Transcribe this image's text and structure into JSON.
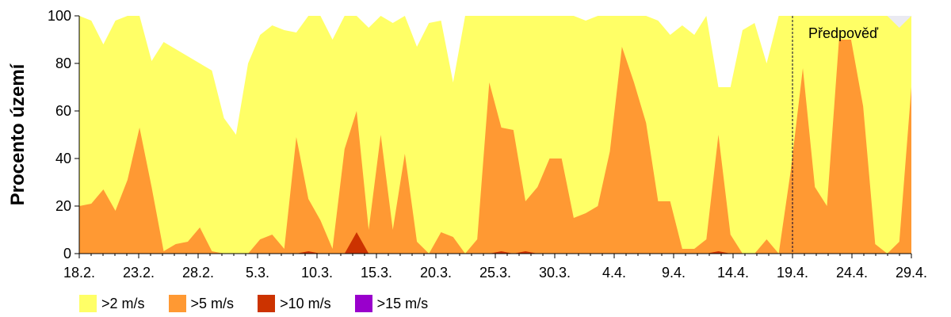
{
  "chart_data": {
    "type": "area",
    "title": "",
    "ylabel": "Procento území",
    "xlabel": "",
    "ylim": [
      0,
      100
    ],
    "yticks": [
      0,
      20,
      40,
      60,
      80,
      100
    ],
    "x_start": "18.2.",
    "x_end": "29.4.",
    "xtick_labels": [
      "18.2.",
      "23.2.",
      "28.2.",
      "5.3.",
      "10.3.",
      "15.3.",
      "20.3.",
      "25.3.",
      "30.3.",
      "4.4.",
      "9.4.",
      "14.4.",
      "19.4.",
      "24.4.",
      "29.4."
    ],
    "forecast_label": "Předpověď",
    "forecast_start": "19.4.",
    "series": [
      {
        "name": ">2 m/s",
        "color": "#ffff66",
        "values": [
          100,
          98,
          88,
          98,
          100,
          100,
          81,
          89,
          86,
          83,
          80,
          77,
          57,
          50,
          80,
          92,
          96,
          94,
          93,
          100,
          100,
          90,
          100,
          100,
          95,
          100,
          97,
          100,
          87,
          97,
          98,
          72,
          100,
          100,
          100,
          100,
          100,
          100,
          100,
          100,
          100,
          100,
          98,
          100,
          100,
          100,
          100,
          100,
          98,
          92,
          96,
          92,
          100,
          70,
          70,
          94,
          97,
          80,
          100,
          100,
          100,
          100,
          100,
          100,
          100,
          100,
          100,
          100,
          95,
          100
        ]
      },
      {
        "name": ">5 m/s",
        "color": "#ff9933",
        "values": [
          20,
          21,
          27,
          18,
          31,
          53,
          28,
          1,
          4,
          5,
          11,
          1,
          0,
          0,
          0,
          6,
          8,
          2,
          49,
          23,
          14,
          2,
          44,
          60,
          10,
          50,
          10,
          42,
          5,
          0,
          9,
          7,
          0,
          6,
          72,
          53,
          52,
          22,
          28,
          40,
          40,
          15,
          17,
          20,
          43,
          87,
          72,
          55,
          22,
          22,
          2,
          2,
          6,
          50,
          8,
          0,
          0,
          6,
          0,
          35,
          78,
          28,
          20,
          90,
          90,
          62,
          4,
          0,
          5,
          70
        ]
      },
      {
        "name": ">10 m/s",
        "color": "#cc3300",
        "values": [
          0,
          0,
          0,
          0,
          0,
          0,
          0,
          0,
          0,
          0,
          0,
          0,
          0,
          0,
          0,
          0,
          0,
          0,
          0,
          1,
          0,
          0,
          0,
          9,
          0,
          0,
          0,
          0,
          0,
          0,
          0,
          0,
          0,
          0,
          0,
          1,
          0,
          1,
          0,
          0,
          0,
          0,
          0,
          0,
          0,
          0,
          0,
          0,
          0,
          0,
          0,
          0,
          0,
          1,
          0,
          0,
          0,
          0,
          0,
          0,
          0,
          0,
          0,
          0,
          0,
          0,
          0,
          0,
          0,
          0
        ]
      },
      {
        "name": ">15 m/s",
        "color": "#9900cc",
        "values": [
          0,
          0,
          0,
          0,
          0,
          0,
          0,
          0,
          0,
          0,
          0,
          0,
          0,
          0,
          0,
          0,
          0,
          0,
          0,
          0,
          0,
          0,
          0,
          0,
          0,
          0,
          0,
          0,
          0,
          0,
          0,
          0,
          0,
          0,
          0,
          0,
          0,
          0,
          0,
          0,
          0,
          0,
          0,
          0,
          0,
          0,
          0,
          0,
          0,
          0,
          0,
          0,
          0,
          0,
          0,
          0,
          0,
          0,
          0,
          0,
          0,
          0,
          0,
          0,
          0,
          0,
          0,
          0,
          0,
          0
        ]
      }
    ],
    "forecast_gray": {
      "color": "#eaeaf2",
      "values": [
        100,
        100,
        100,
        100,
        100,
        100,
        100,
        100,
        100,
        100,
        100,
        100,
        100,
        100,
        100,
        100,
        100,
        100,
        100,
        100,
        100,
        100,
        100,
        100,
        100,
        100,
        100,
        100,
        100,
        100,
        100,
        100,
        100,
        100,
        100,
        100,
        100,
        100,
        100,
        100,
        100,
        100,
        100,
        100,
        100,
        100,
        100,
        100,
        100,
        100,
        100,
        100,
        100,
        100,
        100,
        100,
        100,
        100,
        100,
        100,
        100,
        100,
        100,
        100,
        100,
        100,
        100,
        100,
        100,
        100
      ]
    },
    "grid": false,
    "legend_position": "bottom-left"
  },
  "legend": [
    {
      "label": ">2 m/s",
      "color": "#ffff66"
    },
    {
      "label": ">5 m/s",
      "color": "#ff9933"
    },
    {
      "label": ">10 m/s",
      "color": "#cc3300"
    },
    {
      "label": ">15 m/s",
      "color": "#9900cc"
    }
  ]
}
